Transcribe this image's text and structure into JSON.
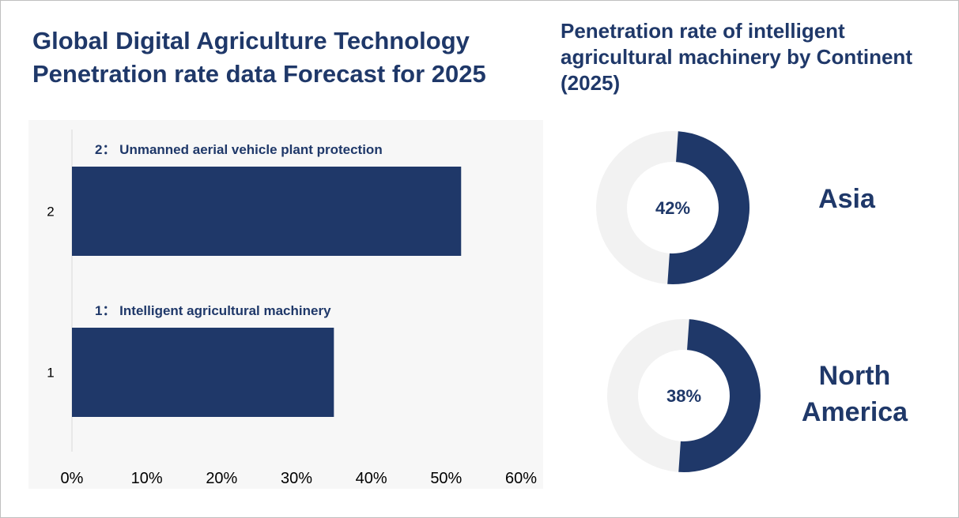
{
  "main_title": "Global Digital Agriculture Technology Penetration rate data Forecast for 2025",
  "side_title": "Penetration rate of intelligent agricultural machinery by Continent (2025)",
  "colors": {
    "bar": "#1f3869",
    "track": "#f2f2f2",
    "text": "#1f3869",
    "plot_bg": "#f7f7f7"
  },
  "chart_data": [
    {
      "type": "bar",
      "orientation": "horizontal",
      "categories": [
        "1",
        "2"
      ],
      "category_labels": [
        "1：  Intelligent agricultural machinery",
        "2：  Unmanned aerial vehicle plant protection"
      ],
      "values": [
        35,
        52
      ],
      "xlim": [
        0,
        60
      ],
      "x_ticks": [
        "0%",
        "10%",
        "20%",
        "30%",
        "40%",
        "50%",
        "60%"
      ],
      "grid": false
    },
    {
      "type": "pie",
      "variant": "donut",
      "items": [
        {
          "label": "Asia",
          "value_label": "42%",
          "value": 42,
          "arc_fraction": 0.5
        },
        {
          "label": "North America",
          "value_label": "38%",
          "value": 38,
          "arc_fraction": 0.5
        }
      ]
    }
  ]
}
